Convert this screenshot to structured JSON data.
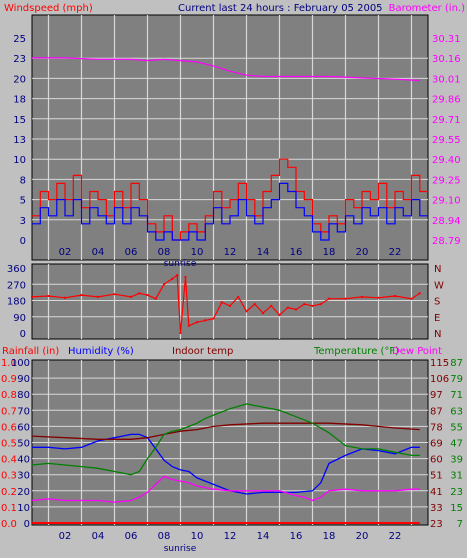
{
  "header": {
    "left_title": "Windspeed (mph)",
    "center_title": "Current last 24 hours : February 05 2005",
    "right_title": "Barometer (in.)"
  },
  "colors": {
    "background": "#c0c0c0",
    "plot_background": "#808080",
    "grid": "#d8d8d8",
    "windspeed": "#ff0000",
    "wind_avg": "#0000ff",
    "barometer": "#ff00ff",
    "wind_direction": "#ff0000",
    "rainfall": "#ff0000",
    "humidity": "#0000ff",
    "indoor_temp": "#800000",
    "temperature": "#008000",
    "dew_point": "#ff00ff",
    "title_red": "#ff0000",
    "title_navy": "#000080",
    "title_magenta": "#ff00ff",
    "title_green": "#008000",
    "title_maroon": "#800000",
    "tick_blue": "#000080",
    "tick_red": "#ff0000"
  },
  "chart_data": [
    {
      "type": "line",
      "title": "Current last 24 hours : February 05 2005",
      "x_ticks": [
        "02",
        "04",
        "06",
        "08",
        "10",
        "12",
        "14",
        "16",
        "18",
        "20",
        "22"
      ],
      "xlim": [
        0,
        24
      ],
      "grid": true,
      "annotation": "sunrise",
      "annotation_x": 8.1,
      "left_axis": {
        "label": "Windspeed (mph)",
        "ticks": [
          "0",
          "3",
          "5",
          "8",
          "10",
          "13",
          "15",
          "18",
          "20",
          "23",
          "25"
        ],
        "ylim": [
          0,
          25
        ]
      },
      "right_axis": {
        "label": "Barometer (in.)",
        "ticks": [
          "28.79",
          "28.94",
          "29.10",
          "29.25",
          "29.40",
          "29.55",
          "29.71",
          "29.86",
          "30.01",
          "30.16",
          "30.31"
        ],
        "ylim": [
          28.79,
          30.31
        ]
      },
      "series": [
        {
          "name": "Windspeed",
          "axis": "left",
          "x": [
            0,
            0.5,
            1,
            1.5,
            2,
            2.5,
            3,
            3.5,
            4,
            4.5,
            5,
            5.5,
            6,
            6.5,
            7,
            7.5,
            8,
            8.5,
            9,
            9.5,
            10,
            10.5,
            11,
            11.5,
            12,
            12.5,
            13,
            13.5,
            14,
            14.5,
            15,
            15.5,
            16,
            16.5,
            17,
            17.5,
            18,
            18.5,
            19,
            19.5,
            20,
            20.5,
            21,
            21.5,
            22,
            22.5,
            23,
            23.5
          ],
          "values": [
            3,
            6,
            5,
            7,
            5,
            8,
            4,
            6,
            5,
            3,
            6,
            4,
            7,
            5,
            2,
            1,
            3,
            0,
            1,
            2,
            1,
            3,
            6,
            4,
            5,
            7,
            5,
            3,
            6,
            8,
            10,
            9,
            6,
            5,
            2,
            1,
            3,
            2,
            5,
            4,
            6,
            5,
            7,
            4,
            6,
            5,
            8,
            6
          ]
        },
        {
          "name": "Wind average",
          "axis": "left",
          "x": [
            0,
            0.5,
            1,
            1.5,
            2,
            2.5,
            3,
            3.5,
            4,
            4.5,
            5,
            5.5,
            6,
            6.5,
            7,
            7.5,
            8,
            8.5,
            9,
            9.5,
            10,
            10.5,
            11,
            11.5,
            12,
            12.5,
            13,
            13.5,
            14,
            14.5,
            15,
            15.5,
            16,
            16.5,
            17,
            17.5,
            18,
            18.5,
            19,
            19.5,
            20,
            20.5,
            21,
            21.5,
            22,
            22.5,
            23,
            23.5
          ],
          "values": [
            2,
            4,
            3,
            5,
            3,
            5,
            2,
            4,
            3,
            2,
            4,
            2,
            4,
            3,
            1,
            0,
            1,
            0,
            0,
            1,
            0,
            2,
            4,
            2,
            3,
            5,
            3,
            2,
            4,
            5,
            7,
            6,
            4,
            3,
            1,
            0,
            2,
            1,
            3,
            2,
            4,
            3,
            4,
            2,
            4,
            3,
            5,
            3
          ]
        },
        {
          "name": "Barometer",
          "axis": "right",
          "x": [
            0,
            2,
            4,
            6,
            7,
            8,
            9,
            10,
            11,
            12,
            13,
            14,
            16,
            18,
            20,
            22,
            23.5
          ],
          "values": [
            30.16,
            30.16,
            30.15,
            30.15,
            30.14,
            30.15,
            30.14,
            30.13,
            30.1,
            30.06,
            30.03,
            30.02,
            30.02,
            30.02,
            30.01,
            30.0,
            29.99
          ]
        }
      ]
    },
    {
      "type": "line",
      "x_ticks": [],
      "xlim": [
        0,
        24
      ],
      "grid": true,
      "left_axis": {
        "ticks": [
          "0",
          "90",
          "180",
          "270",
          "360"
        ],
        "ylim": [
          0,
          360
        ]
      },
      "right_axis": {
        "ticks": [
          "N",
          "E",
          "S",
          "W",
          "N"
        ]
      },
      "series": [
        {
          "name": "Wind direction",
          "axis": "left",
          "x": [
            0,
            1,
            2,
            3,
            4,
            5,
            6,
            6.5,
            7,
            7.5,
            8,
            8.5,
            8.8,
            9,
            9.3,
            9.5,
            10,
            10.5,
            11,
            11.5,
            12,
            12.5,
            13,
            13.5,
            14,
            14.5,
            15,
            15.5,
            16,
            16.5,
            17,
            17.5,
            18,
            19,
            20,
            21,
            22,
            23,
            23.5
          ],
          "values": [
            200,
            205,
            195,
            210,
            200,
            215,
            200,
            220,
            210,
            190,
            270,
            300,
            320,
            0,
            310,
            40,
            60,
            70,
            80,
            170,
            150,
            200,
            120,
            160,
            110,
            150,
            100,
            140,
            130,
            160,
            150,
            160,
            190,
            190,
            200,
            195,
            205,
            190,
            220
          ]
        }
      ]
    },
    {
      "type": "line",
      "x_ticks": [
        "02",
        "04",
        "06",
        "08",
        "10",
        "12",
        "14",
        "16",
        "18",
        "20",
        "22"
      ],
      "xlim": [
        0,
        24
      ],
      "grid": true,
      "annotation": "sunrise",
      "annotation_x": 8.1,
      "title_labels": [
        "Rainfall (in)",
        "Humidity (%)",
        "Indoor temp",
        "Temperature (°F)",
        "Dew Point"
      ],
      "axes": {
        "rainfall": [
          "0.0",
          "0.1",
          "0.2",
          "0.3",
          "0.4",
          "0.5",
          "0.6",
          "0.7",
          "0.8",
          "0.9",
          "1.0"
        ],
        "humidity": [
          "0",
          "10",
          "20",
          "30",
          "40",
          "50",
          "60",
          "70",
          "80",
          "90",
          "100"
        ],
        "indoor_temp": [
          "23",
          "33",
          "41",
          "51",
          "60",
          "69",
          "78",
          "87",
          "97",
          "106",
          "115"
        ],
        "temperature_dew_point": [
          "7",
          "15",
          "23",
          "31",
          "39",
          "47",
          "55",
          "63",
          "71",
          "79",
          "87"
        ]
      },
      "humidity_ylim": [
        0,
        100
      ],
      "series": [
        {
          "name": "Rainfall",
          "axis": "rainfall",
          "x": [
            0,
            23.5
          ],
          "values": [
            0.0,
            0.0
          ]
        },
        {
          "name": "Humidity",
          "axis": "humidity",
          "x": [
            0,
            1,
            2,
            3,
            4,
            5,
            6,
            6.5,
            7,
            7.5,
            8,
            8.5,
            9,
            9.5,
            10,
            10.5,
            11,
            12,
            13,
            14,
            15,
            16,
            17,
            17.5,
            18,
            19,
            20,
            21,
            22,
            23,
            23.5
          ],
          "values": [
            47,
            47,
            46,
            47,
            51,
            53,
            55,
            55,
            53,
            46,
            39,
            35,
            33,
            32,
            28,
            26,
            24,
            20,
            18,
            19,
            19,
            19,
            20,
            25,
            37,
            42,
            46,
            45,
            43,
            47,
            47
          ]
        },
        {
          "name": "Indoor temp",
          "axis": "humidity",
          "x": [
            0,
            2,
            4,
            6,
            7,
            8,
            9,
            10,
            11,
            12,
            14,
            16,
            18,
            20,
            22,
            23.5
          ],
          "values": [
            54,
            53,
            52,
            52,
            53,
            55,
            57,
            58,
            60,
            61,
            62,
            62,
            62,
            61,
            59,
            58
          ]
        },
        {
          "name": "Temperature",
          "axis": "humidity",
          "x": [
            0,
            1,
            2,
            3,
            4,
            5,
            6,
            6.5,
            7,
            7.5,
            8,
            8.5,
            9,
            9.5,
            10,
            10.5,
            11,
            12,
            13,
            14,
            15,
            16,
            17,
            18,
            19,
            20,
            21,
            22,
            23,
            23.5
          ],
          "values": [
            36,
            37,
            36,
            35,
            34,
            32,
            30,
            32,
            40,
            47,
            55,
            57,
            58,
            60,
            62,
            65,
            67,
            71,
            74,
            72,
            70,
            66,
            62,
            56,
            48,
            46,
            46,
            44,
            42,
            42
          ]
        },
        {
          "name": "Dew Point",
          "axis": "humidity",
          "x": [
            0,
            1,
            2,
            3,
            4,
            5,
            6,
            6.5,
            7,
            7.5,
            8,
            8.5,
            9,
            9.5,
            10,
            10.5,
            11,
            12,
            13,
            14,
            15,
            16,
            16.5,
            17,
            17.5,
            18,
            19,
            20,
            21,
            22,
            23,
            23.5
          ],
          "values": [
            14,
            15,
            14,
            14,
            14,
            13,
            14,
            16,
            19,
            24,
            29,
            27,
            26,
            25,
            23,
            22,
            21,
            20,
            20,
            20,
            20,
            17,
            16,
            14,
            16,
            20,
            21,
            20,
            20,
            20,
            21,
            21
          ]
        }
      ]
    }
  ]
}
